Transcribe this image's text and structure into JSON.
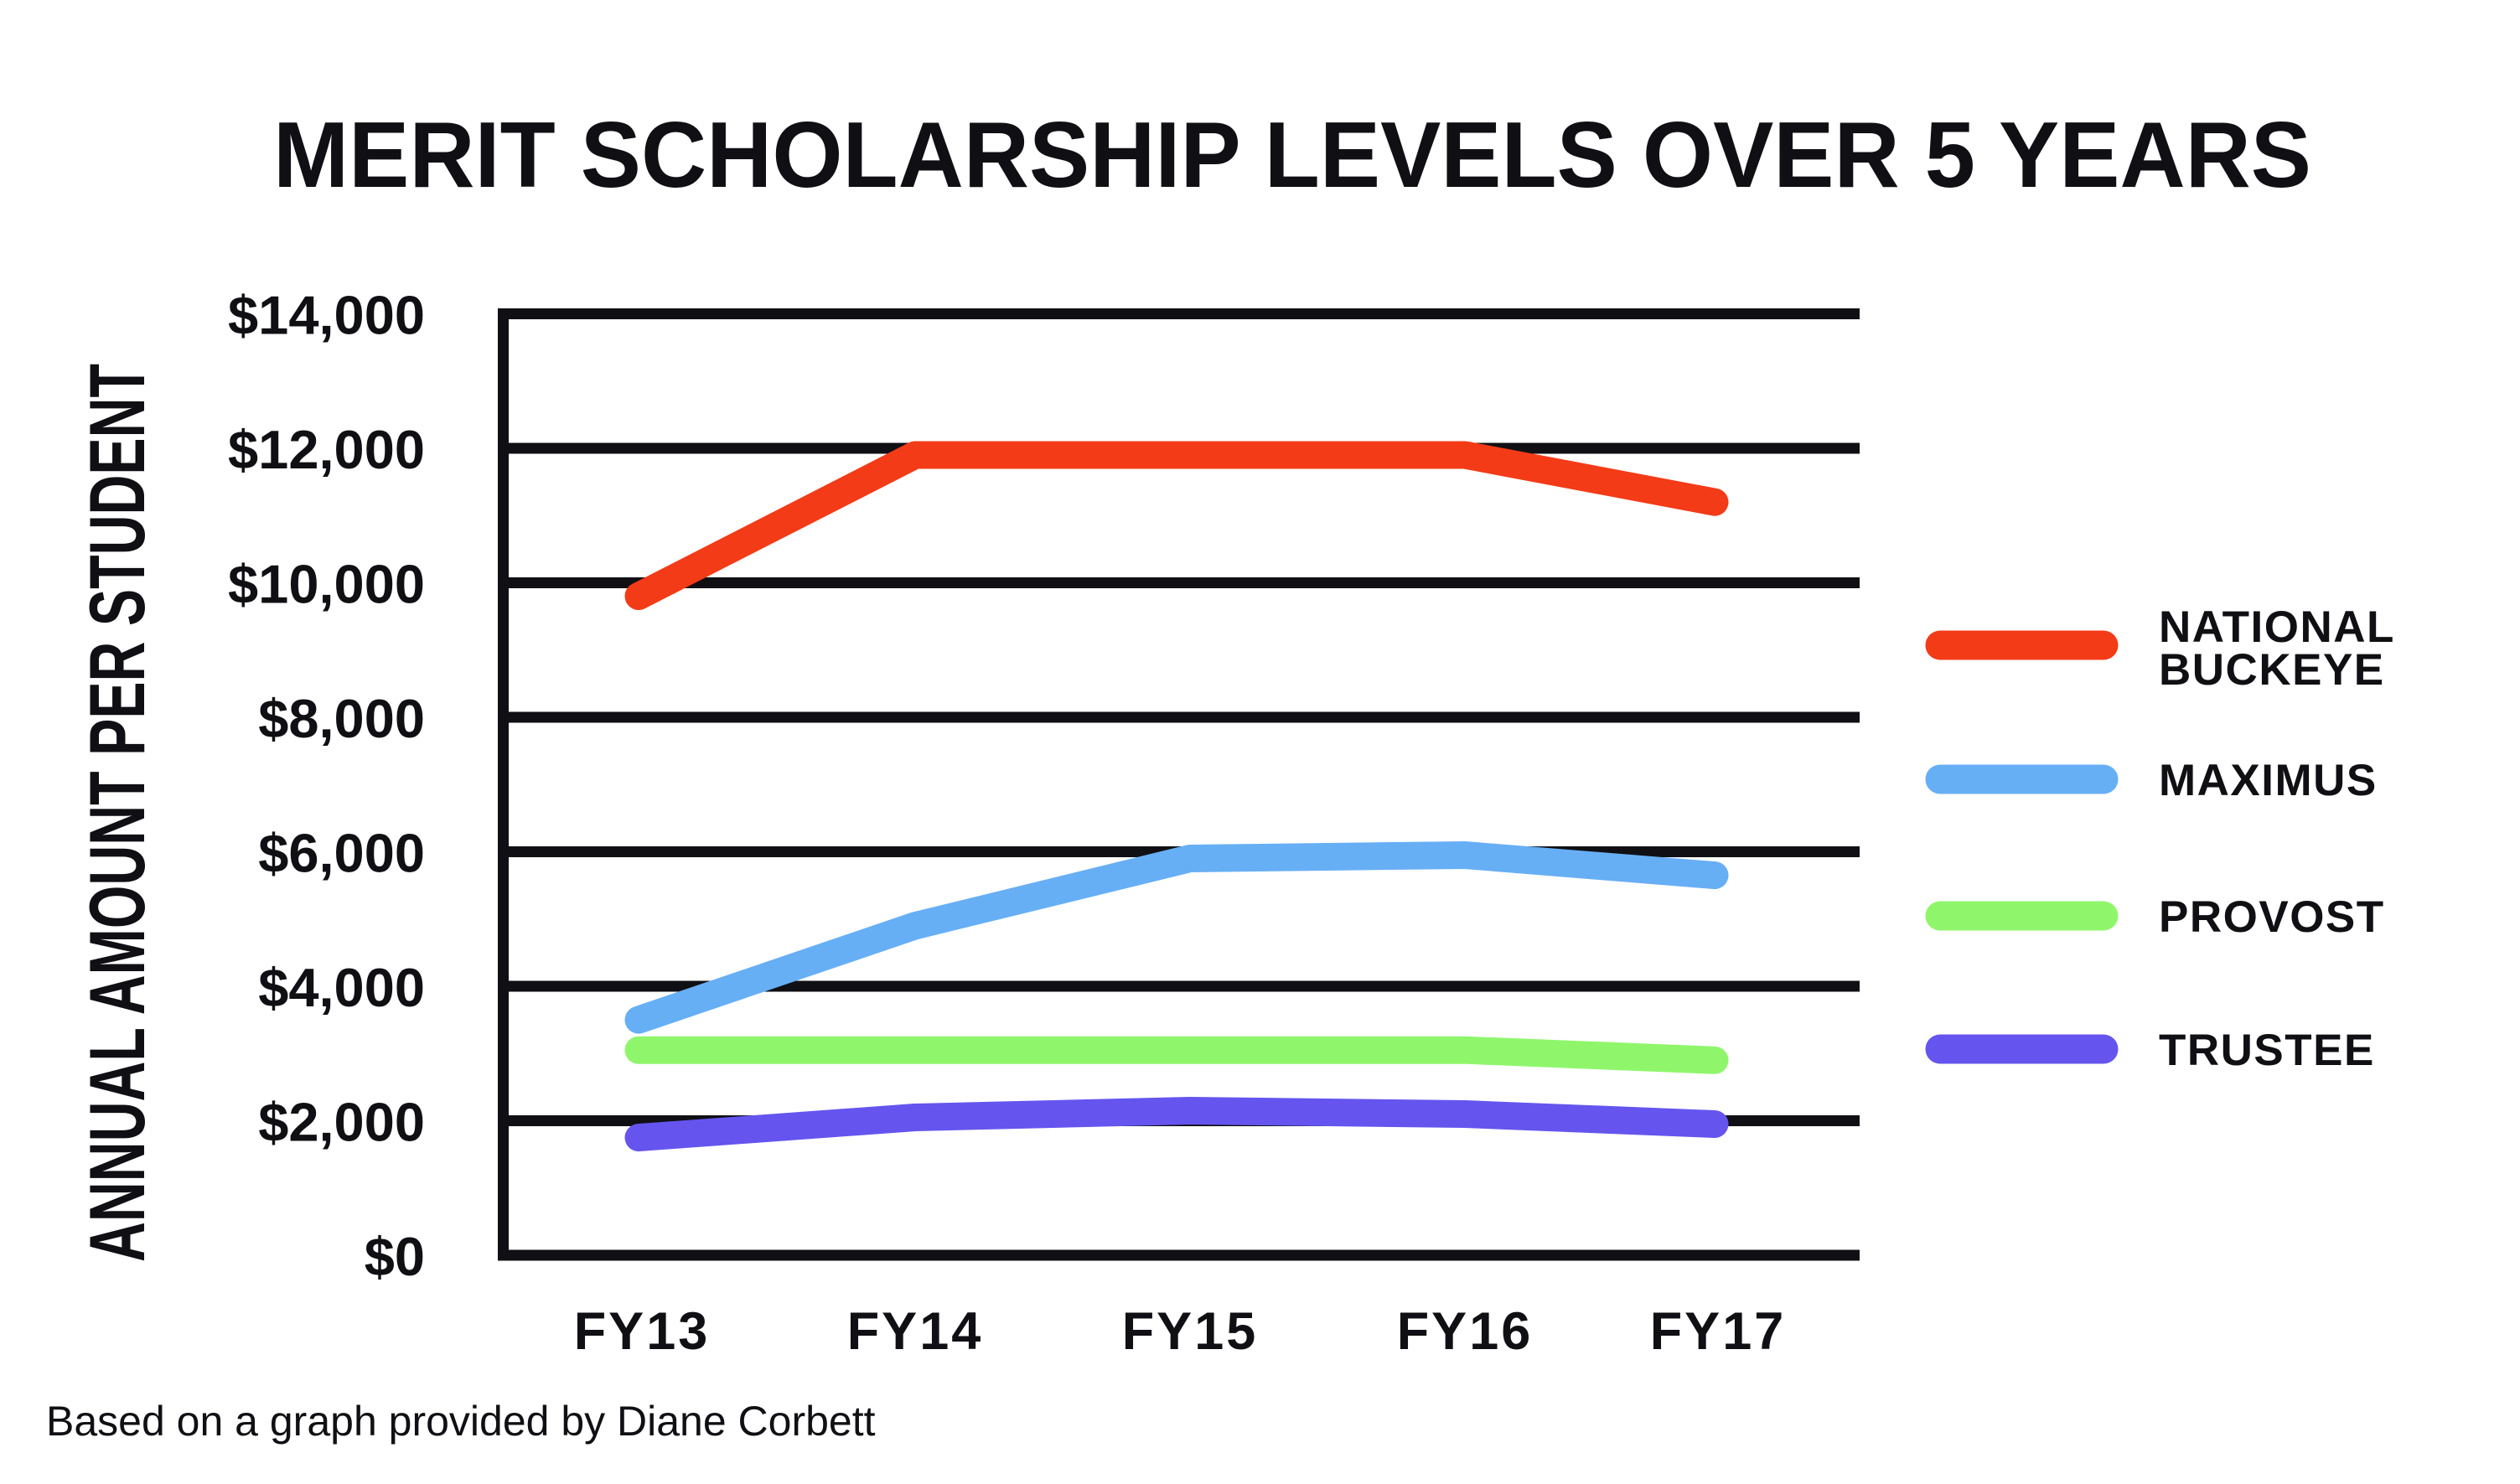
{
  "page": {
    "background": "#ffffff",
    "ink_color": "#101014"
  },
  "footer": "Based on a graph provided by Diane Corbett",
  "chart_data": {
    "type": "line",
    "title": "MERIT SCHOLARSHIP LEVELS OVER 5 YEARS",
    "xlabel": "",
    "ylabel": "ANNUAL AMOUNT PER STUDENT",
    "categories": [
      "FY13",
      "FY14",
      "FY15",
      "FY16",
      "FY17"
    ],
    "ylim": [
      0,
      14000
    ],
    "ytick_step": 2000,
    "ytick_labels": [
      "$0",
      "$2,000",
      "$4,000",
      "$6,000",
      "$8,000",
      "$10,000",
      "$12,000",
      "$14,000"
    ],
    "grid": true,
    "legend_position": "right",
    "series": [
      {
        "name": "NATIONAL BUCKEYE",
        "legend_lines": [
          "NATIONAL",
          "BUCKEYE"
        ],
        "color": "#f33b17",
        "values": [
          9800,
          11900,
          11900,
          11900,
          11200
        ]
      },
      {
        "name": "MAXIMUS",
        "legend_lines": [
          "MAXIMUS"
        ],
        "color": "#67aff5",
        "values": [
          3500,
          4900,
          5900,
          5950,
          5650
        ]
      },
      {
        "name": "PROVOST",
        "legend_lines": [
          "PROVOST"
        ],
        "color": "#8ff66c",
        "values": [
          3050,
          3050,
          3050,
          3050,
          2900
        ]
      },
      {
        "name": "TRUSTEE",
        "legend_lines": [
          "TRUSTEE"
        ],
        "color": "#6555ee",
        "values": [
          1750,
          2050,
          2150,
          2100,
          1950
        ]
      }
    ]
  }
}
